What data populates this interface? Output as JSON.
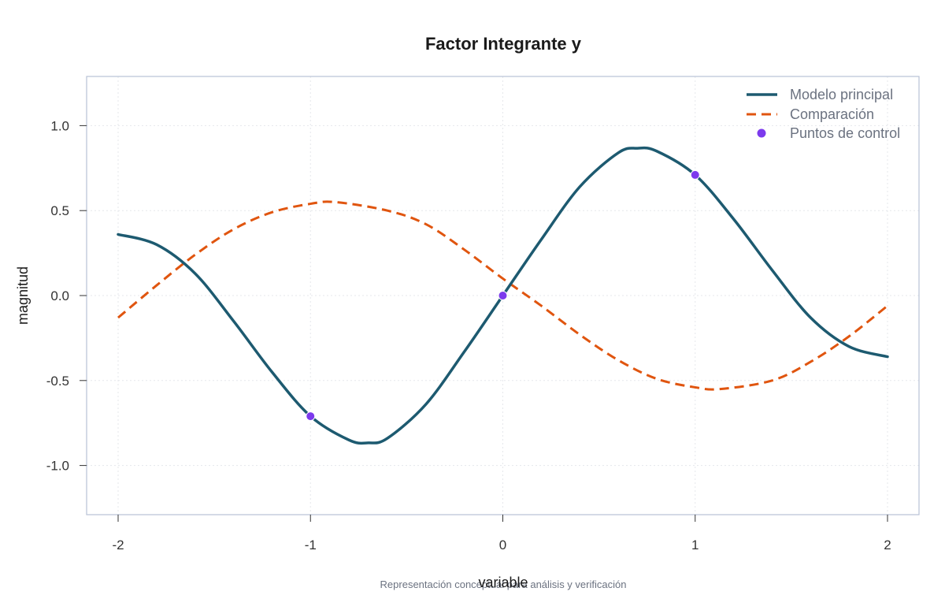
{
  "chart_data": {
    "type": "line",
    "title": "Factor Integrante y",
    "xlabel": "variable",
    "ylabel": "magnitud",
    "caption": "Representación conceptual para análisis y verificación",
    "xlim": [
      -2.1,
      2.1
    ],
    "ylim": [
      -1.3,
      1.3
    ],
    "xticks": [
      -2,
      -1,
      0,
      1,
      2
    ],
    "xtick_labels": [
      "-2",
      "-1",
      "0",
      "1",
      "2"
    ],
    "yticks": [
      -1.0,
      -0.5,
      0.0,
      0.5,
      1.0
    ],
    "ytick_labels": [
      "-1.0",
      "-0.5",
      "0.0",
      "0.5",
      "1.0"
    ],
    "grid": true,
    "legend_position": "top-right",
    "series": [
      {
        "name": "Modelo principal",
        "style": "solid",
        "color": "#1d5a70",
        "x": [
          -2.0,
          -1.8,
          -1.6,
          -1.4,
          -1.2,
          -1.0,
          -0.8,
          -0.7,
          -0.6,
          -0.4,
          -0.2,
          0.0,
          0.2,
          0.4,
          0.6,
          0.7,
          0.8,
          1.0,
          1.2,
          1.4,
          1.6,
          1.8,
          2.0
        ],
        "y": [
          0.36,
          0.3,
          0.13,
          -0.15,
          -0.45,
          -0.71,
          -0.85,
          -0.867,
          -0.84,
          -0.64,
          -0.33,
          0.0,
          0.33,
          0.64,
          0.84,
          0.867,
          0.85,
          0.71,
          0.45,
          0.15,
          -0.13,
          -0.3,
          -0.36
        ]
      },
      {
        "name": "Comparación",
        "style": "dashed",
        "color": "#e0550f",
        "x": [
          -2.0,
          -1.8,
          -1.6,
          -1.4,
          -1.2,
          -1.0,
          -0.87,
          -0.6,
          -0.4,
          -0.2,
          0.0,
          0.2,
          0.4,
          0.6,
          0.8,
          1.0,
          1.13,
          1.4,
          1.6,
          1.8,
          2.0
        ],
        "y": [
          -0.13,
          0.06,
          0.24,
          0.39,
          0.49,
          0.54,
          0.55,
          0.5,
          0.42,
          0.27,
          0.1,
          -0.06,
          -0.23,
          -0.38,
          -0.49,
          -0.54,
          -0.55,
          -0.5,
          -0.39,
          -0.24,
          -0.06
        ]
      },
      {
        "name": "Puntos de control",
        "style": "points",
        "color": "#7c3aed",
        "x": [
          -1,
          0,
          1
        ],
        "y": [
          -0.71,
          0.0,
          0.71
        ]
      }
    ]
  }
}
